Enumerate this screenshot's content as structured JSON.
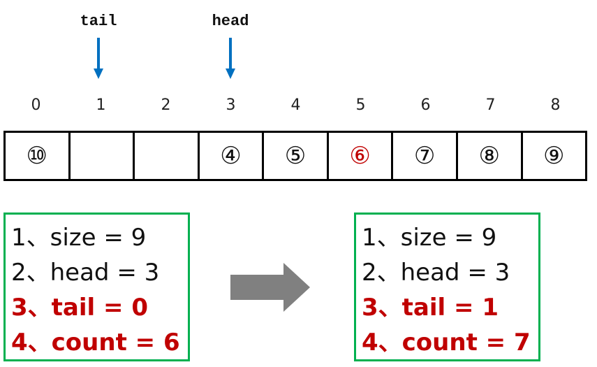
{
  "pointers": [
    {
      "label": "tail",
      "index": 1
    },
    {
      "label": "head",
      "index": 3
    }
  ],
  "indices": [
    "0",
    "1",
    "2",
    "3",
    "4",
    "5",
    "6",
    "7",
    "8"
  ],
  "cells": [
    "⑩",
    "",
    "",
    "④",
    "⑤",
    "⑥",
    "⑦",
    "⑧",
    "⑨"
  ],
  "highlighted_cell_index": 5,
  "before_state": {
    "lines": [
      "1、size = 9",
      "2、head = 3",
      "3、tail = 0",
      "4、count = 6"
    ]
  },
  "after_state": {
    "lines": [
      "1、size = 9",
      "2、head = 3",
      "3、tail = 1",
      "4、count = 7"
    ]
  },
  "changed_line_indices": [
    2,
    3
  ],
  "colors": {
    "pointer_arrow": "#0070c0",
    "highlight_text": "#c00000",
    "state_box_border": "#00b050",
    "transition_arrow": "#808080",
    "cell_border": "#000000"
  }
}
